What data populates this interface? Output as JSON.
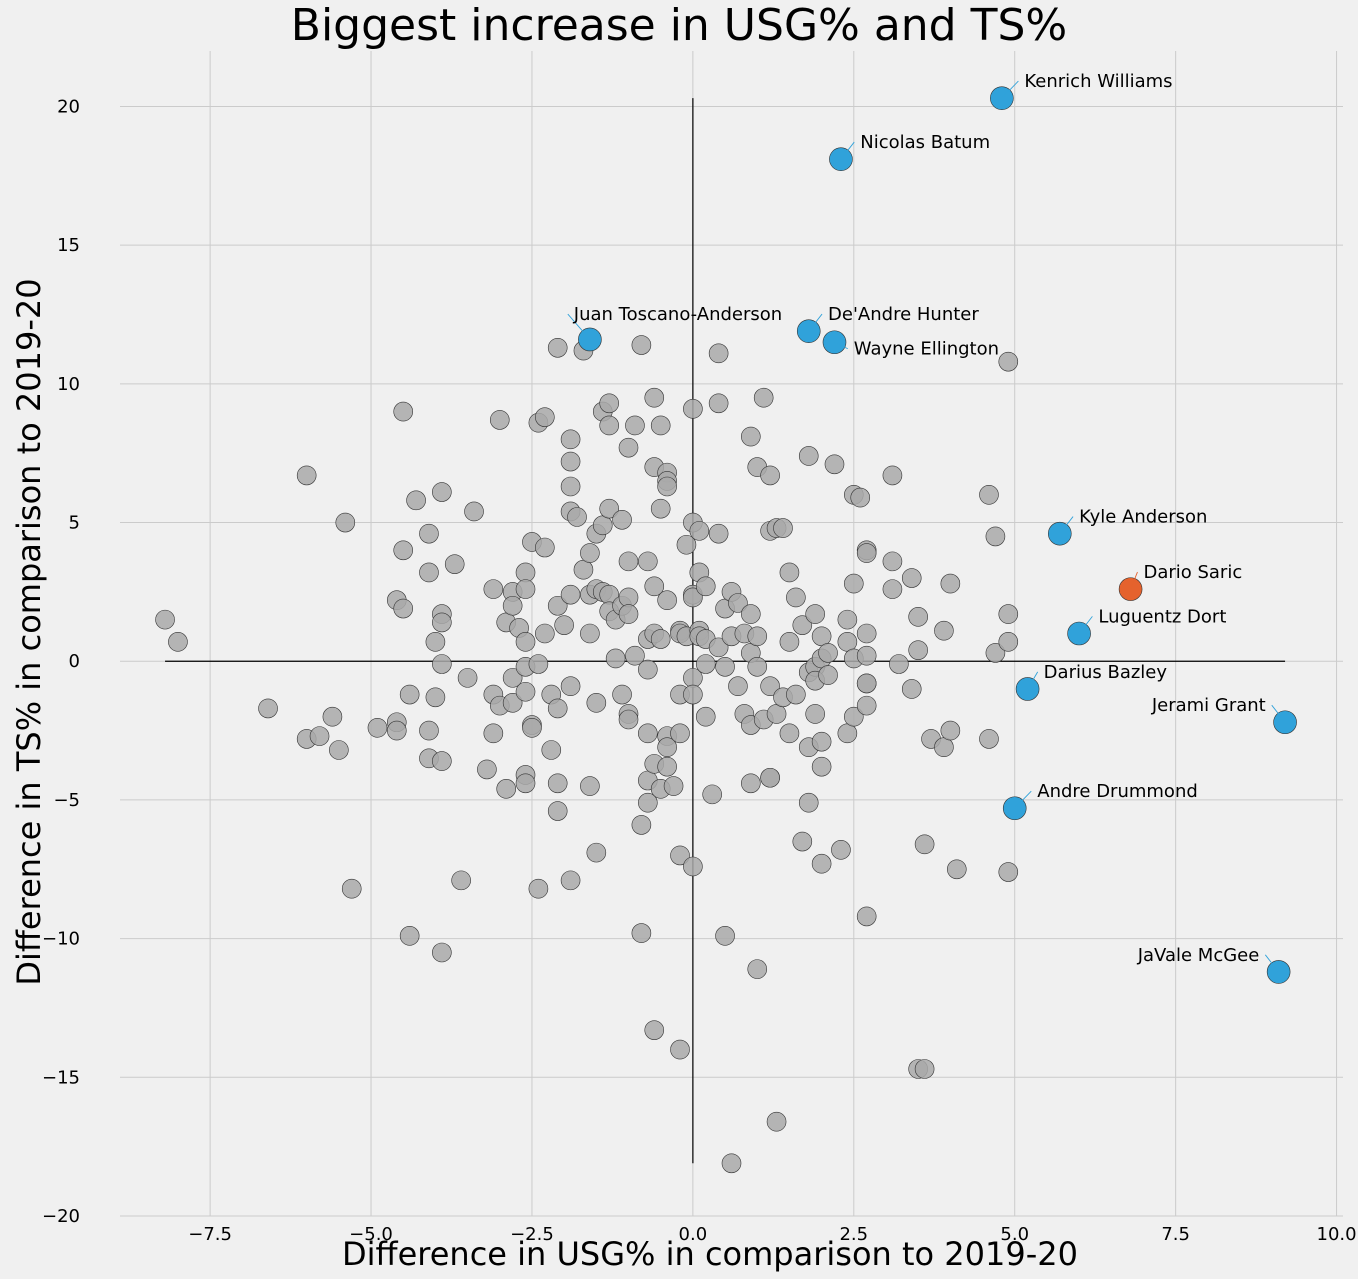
{
  "chart_data": {
    "type": "scatter",
    "title": "Biggest increase in USG% and TS%",
    "xlabel": "Difference in USG% in comparison to 2019-20",
    "ylabel": "Difference in TS% in comparison to 2019-20",
    "xlim": [
      -8.9,
      10.1
    ],
    "ylim": [
      -20,
      22
    ],
    "xticks": [
      -7.5,
      -5.0,
      -2.5,
      0.0,
      2.5,
      5.0,
      7.5,
      10.0
    ],
    "xtick_labels": [
      "−7.5",
      "−5.0",
      "−2.5",
      "0.0",
      "2.5",
      "5.0",
      "7.5",
      "10.0"
    ],
    "yticks": [
      -20,
      -15,
      -10,
      -5,
      0,
      5,
      10,
      15,
      20
    ],
    "ytick_labels": [
      "−20",
      "−15",
      "−10",
      "−5",
      "0",
      "5",
      "10",
      "15",
      "20"
    ],
    "grid": true,
    "colors": {
      "background": "#f0f0f0",
      "grid": "#cbcbcb",
      "others": "#a9a9a9",
      "highlight": "#30a2da",
      "featured": "#e5622d"
    },
    "reference_lines": {
      "horizontal": {
        "y": 0,
        "x_range": [
          -8.2,
          9.2
        ]
      },
      "vertical": {
        "x": 0,
        "y_range": [
          -18.1,
          20.3
        ]
      }
    },
    "highlighted": [
      {
        "name": "Kenrich Williams",
        "x": 4.8,
        "y": 20.3,
        "color": "#30a2da",
        "label_x": 5.15,
        "label_y": 20.7,
        "anchor": "start"
      },
      {
        "name": "Nicolas Batum",
        "x": 2.3,
        "y": 18.1,
        "color": "#30a2da",
        "label_x": 2.6,
        "label_y": 18.5,
        "anchor": "start"
      },
      {
        "name": "Juan Toscano-Anderson",
        "x": -1.6,
        "y": 11.6,
        "color": "#30a2da",
        "label_x": -1.85,
        "label_y": 12.3,
        "anchor": "start"
      },
      {
        "name": "De'Andre Hunter",
        "x": 1.8,
        "y": 11.9,
        "color": "#30a2da",
        "label_x": 2.1,
        "label_y": 12.3,
        "anchor": "start"
      },
      {
        "name": "Wayne Ellington",
        "x": 2.2,
        "y": 11.5,
        "color": "#30a2da",
        "label_x": 2.5,
        "label_y": 11.05,
        "anchor": "start"
      },
      {
        "name": "Kyle Anderson",
        "x": 5.7,
        "y": 4.6,
        "color": "#30a2da",
        "label_x": 6.0,
        "label_y": 5.0,
        "anchor": "start"
      },
      {
        "name": "Dario Saric",
        "x": 6.8,
        "y": 2.6,
        "color": "#e5622d",
        "label_x": 7.0,
        "label_y": 3.0,
        "anchor": "start"
      },
      {
        "name": "Luguentz Dort",
        "x": 6.0,
        "y": 1.0,
        "color": "#30a2da",
        "label_x": 6.3,
        "label_y": 1.4,
        "anchor": "start"
      },
      {
        "name": "Darius Bazley",
        "x": 5.2,
        "y": -1.0,
        "color": "#30a2da",
        "label_x": 5.45,
        "label_y": -0.6,
        "anchor": "start"
      },
      {
        "name": "Jerami Grant",
        "x": 9.2,
        "y": -2.2,
        "color": "#30a2da",
        "label_x": 8.9,
        "label_y": -1.8,
        "anchor": "end"
      },
      {
        "name": "Andre Drummond",
        "x": 5.0,
        "y": -5.3,
        "color": "#30a2da",
        "label_x": 5.35,
        "label_y": -4.9,
        "anchor": "start"
      },
      {
        "name": "JaVale McGee",
        "x": 9.1,
        "y": -11.2,
        "color": "#30a2da",
        "label_x": 8.8,
        "label_y": -10.8,
        "anchor": "end"
      }
    ],
    "others": [
      [
        -8.2,
        1.5
      ],
      [
        -8.0,
        0.7
      ],
      [
        -6.6,
        -1.7
      ],
      [
        -6.0,
        6.7
      ],
      [
        -6.0,
        -2.8
      ],
      [
        -5.8,
        -2.7
      ],
      [
        -5.6,
        -2.0
      ],
      [
        -5.5,
        -3.2
      ],
      [
        -5.4,
        5.0
      ],
      [
        -5.3,
        -8.2
      ],
      [
        -4.9,
        -2.4
      ],
      [
        -4.6,
        2.2
      ],
      [
        -4.6,
        -2.2
      ],
      [
        -4.6,
        -2.5
      ],
      [
        -4.5,
        9.0
      ],
      [
        -4.5,
        4.0
      ],
      [
        -4.5,
        1.9
      ],
      [
        -4.4,
        -1.2
      ],
      [
        -4.4,
        -9.9
      ],
      [
        -4.3,
        5.8
      ],
      [
        -4.1,
        4.6
      ],
      [
        -4.1,
        3.2
      ],
      [
        -4.1,
        -2.5
      ],
      [
        -4.1,
        -3.5
      ],
      [
        -4.0,
        0.7
      ],
      [
        -4.0,
        -1.3
      ],
      [
        -3.9,
        6.1
      ],
      [
        -3.9,
        1.7
      ],
      [
        -3.9,
        1.4
      ],
      [
        -3.9,
        -0.1
      ],
      [
        -3.9,
        -3.6
      ],
      [
        -3.9,
        -10.5
      ],
      [
        -3.7,
        3.5
      ],
      [
        -3.6,
        -7.9
      ],
      [
        -3.5,
        -0.6
      ],
      [
        -3.4,
        5.4
      ],
      [
        -3.2,
        -3.9
      ],
      [
        -3.1,
        2.6
      ],
      [
        -3.1,
        -1.2
      ],
      [
        -3.1,
        -2.6
      ],
      [
        -3.0,
        8.7
      ],
      [
        -3.0,
        -1.6
      ],
      [
        -2.9,
        1.4
      ],
      [
        -2.9,
        -4.6
      ],
      [
        -2.8,
        2.5
      ],
      [
        -2.8,
        2.0
      ],
      [
        -2.8,
        -0.6
      ],
      [
        -2.8,
        -1.5
      ],
      [
        -2.7,
        1.2
      ],
      [
        -2.6,
        3.2
      ],
      [
        -2.6,
        2.6
      ],
      [
        -2.6,
        0.7
      ],
      [
        -2.6,
        -0.2
      ],
      [
        -2.6,
        -1.1
      ],
      [
        -2.6,
        -4.1
      ],
      [
        -2.6,
        -4.4
      ],
      [
        -2.5,
        4.3
      ],
      [
        -2.5,
        -2.3
      ],
      [
        -2.5,
        -2.4
      ],
      [
        -2.4,
        8.6
      ],
      [
        -2.4,
        -0.1
      ],
      [
        -2.4,
        -8.2
      ],
      [
        -2.3,
        8.8
      ],
      [
        -2.3,
        4.1
      ],
      [
        -2.3,
        1.0
      ],
      [
        -2.2,
        -1.2
      ],
      [
        -2.2,
        -3.2
      ],
      [
        -2.1,
        11.3
      ],
      [
        -2.1,
        2.0
      ],
      [
        -2.1,
        -1.7
      ],
      [
        -2.1,
        -4.4
      ],
      [
        -2.1,
        -5.4
      ],
      [
        -2.0,
        1.3
      ],
      [
        -1.9,
        8.0
      ],
      [
        -1.9,
        7.2
      ],
      [
        -1.9,
        6.3
      ],
      [
        -1.9,
        5.4
      ],
      [
        -1.9,
        2.4
      ],
      [
        -1.9,
        -0.9
      ],
      [
        -1.9,
        -7.9
      ],
      [
        -1.8,
        5.2
      ],
      [
        -1.7,
        11.2
      ],
      [
        -1.7,
        3.3
      ],
      [
        -1.6,
        3.9
      ],
      [
        -1.6,
        2.4
      ],
      [
        -1.6,
        1.0
      ],
      [
        -1.6,
        -4.5
      ],
      [
        -1.5,
        4.6
      ],
      [
        -1.5,
        2.6
      ],
      [
        -1.5,
        -1.5
      ],
      [
        -1.5,
        -6.9
      ],
      [
        -1.4,
        9.0
      ],
      [
        -1.4,
        4.9
      ],
      [
        -1.4,
        2.5
      ],
      [
        -1.3,
        9.3
      ],
      [
        -1.3,
        8.5
      ],
      [
        -1.3,
        5.5
      ],
      [
        -1.3,
        2.4
      ],
      [
        -1.3,
        1.8
      ],
      [
        -1.2,
        1.5
      ],
      [
        -1.2,
        0.1
      ],
      [
        -1.1,
        5.1
      ],
      [
        -1.1,
        2.0
      ],
      [
        -1.1,
        -1.2
      ],
      [
        -1.0,
        7.7
      ],
      [
        -1.0,
        3.6
      ],
      [
        -1.0,
        2.3
      ],
      [
        -1.0,
        1.7
      ],
      [
        -1.0,
        -1.9
      ],
      [
        -1.0,
        -2.1
      ],
      [
        -0.9,
        8.5
      ],
      [
        -0.9,
        0.2
      ],
      [
        -0.8,
        11.4
      ],
      [
        -0.8,
        -5.9
      ],
      [
        -0.8,
        -9.8
      ],
      [
        -0.7,
        3.6
      ],
      [
        -0.7,
        0.8
      ],
      [
        -0.7,
        -0.3
      ],
      [
        -0.7,
        -2.6
      ],
      [
        -0.7,
        -4.3
      ],
      [
        -0.7,
        -5.1
      ],
      [
        -0.6,
        9.5
      ],
      [
        -0.6,
        7.0
      ],
      [
        -0.6,
        2.7
      ],
      [
        -0.6,
        1.0
      ],
      [
        -0.6,
        -3.7
      ],
      [
        -0.6,
        -13.3
      ],
      [
        -0.5,
        8.5
      ],
      [
        -0.5,
        5.5
      ],
      [
        -0.5,
        0.8
      ],
      [
        -0.5,
        -4.6
      ],
      [
        -0.4,
        6.8
      ],
      [
        -0.4,
        6.5
      ],
      [
        -0.4,
        6.3
      ],
      [
        -0.4,
        2.2
      ],
      [
        -0.4,
        -2.7
      ],
      [
        -0.4,
        -3.1
      ],
      [
        -0.4,
        -3.8
      ],
      [
        -0.3,
        -4.5
      ],
      [
        -0.2,
        1.1
      ],
      [
        -0.2,
        1.0
      ],
      [
        -0.2,
        -1.2
      ],
      [
        -0.2,
        -2.6
      ],
      [
        -0.2,
        -7.0
      ],
      [
        -0.2,
        -14.0
      ],
      [
        -0.1,
        4.2
      ],
      [
        -0.1,
        0.9
      ],
      [
        0.0,
        9.1
      ],
      [
        0.0,
        5.0
      ],
      [
        0.0,
        2.4
      ],
      [
        0.0,
        2.3
      ],
      [
        0.0,
        -0.6
      ],
      [
        0.0,
        -1.2
      ],
      [
        0.0,
        -7.4
      ],
      [
        0.1,
        4.7
      ],
      [
        0.1,
        3.2
      ],
      [
        0.1,
        1.1
      ],
      [
        0.1,
        0.9
      ],
      [
        0.2,
        2.7
      ],
      [
        0.2,
        0.8
      ],
      [
        0.2,
        -0.1
      ],
      [
        0.2,
        -2.0
      ],
      [
        0.3,
        -4.8
      ],
      [
        0.4,
        11.1
      ],
      [
        0.4,
        9.3
      ],
      [
        0.4,
        4.6
      ],
      [
        0.4,
        0.5
      ],
      [
        0.5,
        1.9
      ],
      [
        0.5,
        -0.2
      ],
      [
        0.5,
        -9.9
      ],
      [
        0.6,
        2.5
      ],
      [
        0.6,
        0.9
      ],
      [
        0.6,
        -18.1
      ],
      [
        0.7,
        2.1
      ],
      [
        0.7,
        -0.9
      ],
      [
        0.8,
        1.0
      ],
      [
        0.8,
        -1.9
      ],
      [
        0.9,
        8.1
      ],
      [
        0.9,
        1.7
      ],
      [
        0.9,
        0.3
      ],
      [
        0.9,
        -2.3
      ],
      [
        0.9,
        -4.4
      ],
      [
        1.0,
        7.0
      ],
      [
        1.0,
        0.9
      ],
      [
        1.0,
        -0.2
      ],
      [
        1.0,
        -11.1
      ],
      [
        1.1,
        9.5
      ],
      [
        1.1,
        -2.1
      ],
      [
        1.2,
        6.7
      ],
      [
        1.2,
        4.7
      ],
      [
        1.2,
        -0.9
      ],
      [
        1.2,
        -4.2
      ],
      [
        1.2,
        -4.2
      ],
      [
        1.3,
        4.8
      ],
      [
        1.3,
        -1.9
      ],
      [
        1.3,
        -16.6
      ],
      [
        1.4,
        4.8
      ],
      [
        1.4,
        -1.3
      ],
      [
        1.5,
        3.2
      ],
      [
        1.5,
        0.7
      ],
      [
        1.5,
        -2.6
      ],
      [
        1.6,
        2.3
      ],
      [
        1.6,
        -1.2
      ],
      [
        1.7,
        1.3
      ],
      [
        1.7,
        -6.5
      ],
      [
        1.8,
        7.4
      ],
      [
        1.8,
        -0.4
      ],
      [
        1.8,
        -3.1
      ],
      [
        1.8,
        -5.1
      ],
      [
        1.9,
        1.7
      ],
      [
        1.9,
        -0.2
      ],
      [
        1.9,
        -0.7
      ],
      [
        1.9,
        -1.9
      ],
      [
        2.0,
        0.9
      ],
      [
        2.0,
        0.1
      ],
      [
        2.0,
        -2.9
      ],
      [
        2.0,
        -3.8
      ],
      [
        2.0,
        -7.3
      ],
      [
        2.1,
        0.3
      ],
      [
        2.1,
        -0.5
      ],
      [
        2.2,
        7.1
      ],
      [
        2.3,
        -6.8
      ],
      [
        2.4,
        1.5
      ],
      [
        2.4,
        0.7
      ],
      [
        2.4,
        -2.6
      ],
      [
        2.5,
        6.0
      ],
      [
        2.5,
        2.8
      ],
      [
        2.5,
        0.1
      ],
      [
        2.5,
        -2.0
      ],
      [
        2.6,
        5.9
      ],
      [
        2.7,
        4.0
      ],
      [
        2.7,
        3.9
      ],
      [
        2.7,
        1.0
      ],
      [
        2.7,
        0.2
      ],
      [
        2.7,
        -0.8
      ],
      [
        2.7,
        -0.8
      ],
      [
        2.7,
        -1.6
      ],
      [
        2.7,
        -9.2
      ],
      [
        3.1,
        6.7
      ],
      [
        3.1,
        3.6
      ],
      [
        3.1,
        2.6
      ],
      [
        3.2,
        -0.1
      ],
      [
        3.4,
        3.0
      ],
      [
        3.4,
        -1.0
      ],
      [
        3.5,
        1.6
      ],
      [
        3.5,
        0.4
      ],
      [
        3.5,
        -14.7
      ],
      [
        3.6,
        -6.6
      ],
      [
        3.6,
        -14.7
      ],
      [
        3.7,
        -2.8
      ],
      [
        3.9,
        1.1
      ],
      [
        3.9,
        -3.1
      ],
      [
        4.0,
        2.8
      ],
      [
        4.0,
        -2.5
      ],
      [
        4.1,
        -7.5
      ],
      [
        4.6,
        6.0
      ],
      [
        4.6,
        -2.8
      ],
      [
        4.7,
        4.5
      ],
      [
        4.7,
        0.3
      ],
      [
        4.9,
        10.8
      ],
      [
        4.9,
        1.7
      ],
      [
        4.9,
        0.7
      ],
      [
        4.9,
        -7.6
      ]
    ]
  }
}
